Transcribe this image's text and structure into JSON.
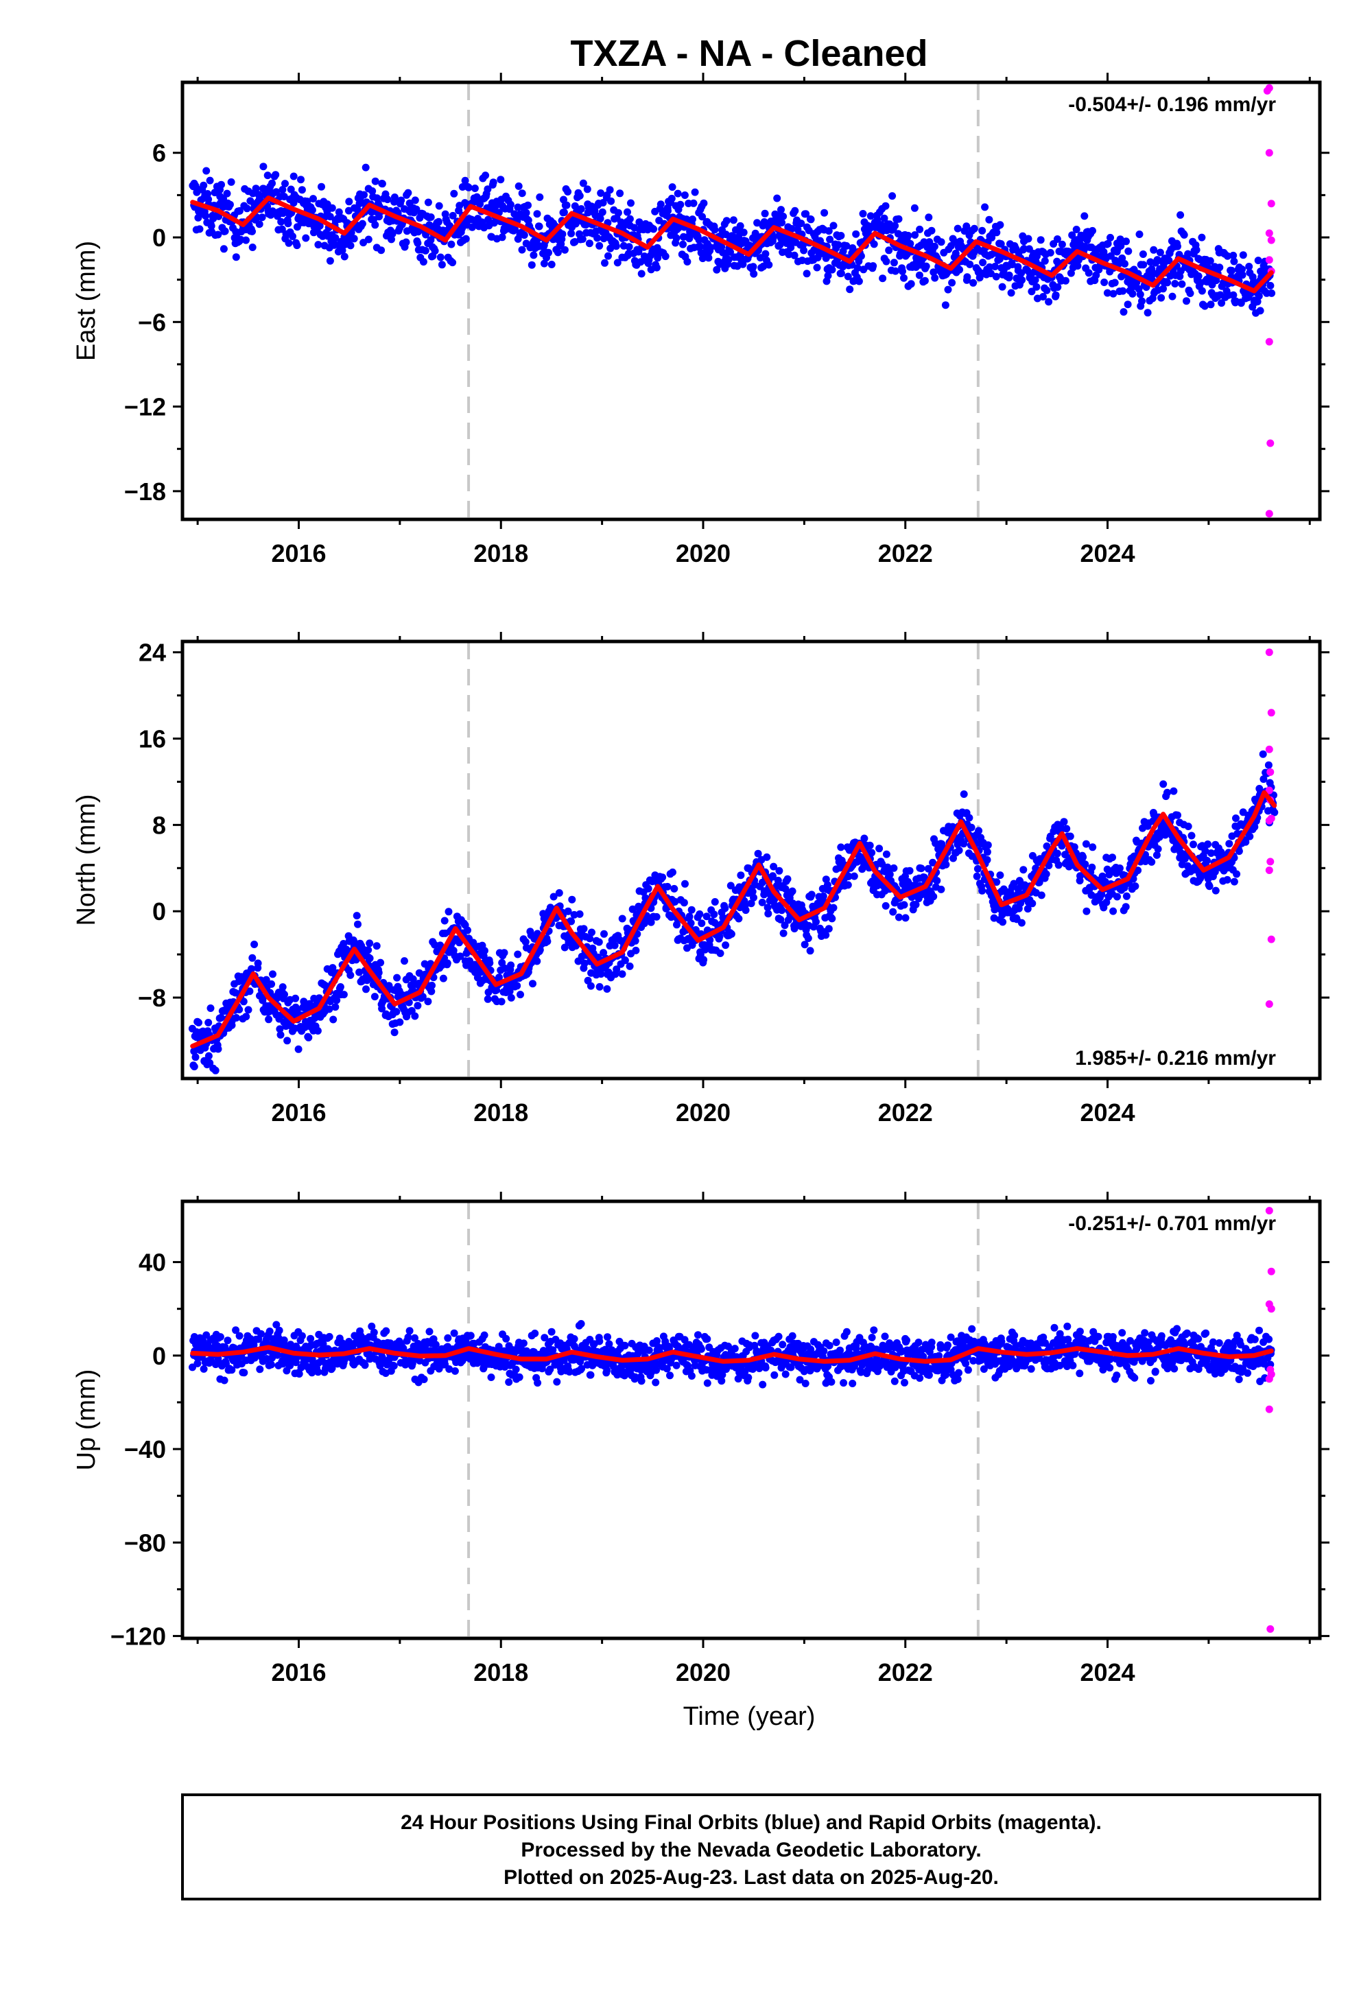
{
  "title": "TXZA  - NA - Cleaned",
  "xlabel": "Time (year)",
  "footer": {
    "line1": "24 Hour Positions Using Final Orbits (blue) and Rapid Orbits (magenta).",
    "line2": "Processed by the Nevada Geodetic Laboratory.",
    "line3": "Plotted on 2025-Aug-23. Last data on 2025-Aug-20."
  },
  "colors": {
    "final": "#0000ff",
    "rapid": "#ff00ff",
    "model": "#ff0000",
    "offset_line": "#c8c8c8",
    "frame": "#000000"
  },
  "chart_data": [
    {
      "type": "scatter",
      "name": "east",
      "ylabel": "East (mm)",
      "rate_label": "-0.504+/- 0.196 mm/yr",
      "rate_position": "top-right",
      "xlim": [
        2014.85,
        2026.1
      ],
      "ylim": [
        -20,
        11
      ],
      "x_ticks": [
        2016,
        2018,
        2020,
        2022,
        2024
      ],
      "y_ticks": [
        6,
        0,
        -6,
        -12,
        -18
      ],
      "y_tick_labels": [
        "6",
        "0",
        "−6",
        "−12",
        "−18"
      ],
      "offsets": [
        2017.68,
        2022.72
      ],
      "model": {
        "x": [
          2014.95,
          2015.2,
          2015.45,
          2015.7,
          2015.95,
          2016.2,
          2016.45,
          2016.7,
          2016.95,
          2017.2,
          2017.45,
          2017.7,
          2017.95,
          2018.2,
          2018.45,
          2018.7,
          2018.95,
          2019.2,
          2019.45,
          2019.7,
          2019.95,
          2020.2,
          2020.45,
          2020.7,
          2020.95,
          2021.2,
          2021.45,
          2021.7,
          2021.95,
          2022.2,
          2022.45,
          2022.7,
          2022.95,
          2023.2,
          2023.45,
          2023.7,
          2023.95,
          2024.2,
          2024.45,
          2024.7,
          2024.95,
          2025.2,
          2025.45,
          2025.62
        ],
        "y": [
          2.5,
          1.9,
          0.9,
          2.8,
          2.0,
          1.3,
          0.3,
          2.3,
          1.5,
          0.8,
          -0.2,
          2.2,
          1.5,
          0.8,
          -0.2,
          1.7,
          1.0,
          0.3,
          -0.7,
          1.3,
          0.6,
          -0.3,
          -1.2,
          0.7,
          0.0,
          -0.8,
          -1.7,
          0.3,
          -0.6,
          -1.3,
          -2.2,
          -0.3,
          -1.0,
          -1.8,
          -2.7,
          -1.0,
          -1.8,
          -2.5,
          -3.4,
          -1.5,
          -2.3,
          -3.0,
          -3.8,
          -2.5
        ]
      },
      "scatter_band": 1.6,
      "rapid": {
        "x": [
          2025.58,
          2025.6,
          2025.6,
          2025.62,
          2025.6,
          2025.62,
          2025.6,
          2025.62,
          2025.6,
          2025.61,
          2025.6
        ],
        "y": [
          10.4,
          10.6,
          6.0,
          2.4,
          0.3,
          -0.2,
          -1.6,
          -2.4,
          -7.4,
          -14.6,
          -19.6
        ]
      }
    },
    {
      "type": "scatter",
      "name": "north",
      "ylabel": "North (mm)",
      "rate_label": "1.985+/- 0.216 mm/yr",
      "rate_position": "bottom-right",
      "xlim": [
        2014.85,
        2026.1
      ],
      "ylim": [
        -15.5,
        25
      ],
      "x_ticks": [
        2016,
        2018,
        2020,
        2022,
        2024
      ],
      "y_ticks": [
        24,
        16,
        8,
        0,
        -8
      ],
      "y_tick_labels": [
        "24",
        "16",
        "8",
        "0",
        "−8"
      ],
      "offsets": [
        2017.68,
        2022.72
      ],
      "model": {
        "x": [
          2014.95,
          2015.2,
          2015.45,
          2015.55,
          2015.7,
          2015.95,
          2016.2,
          2016.45,
          2016.55,
          2016.7,
          2016.95,
          2017.2,
          2017.45,
          2017.55,
          2017.7,
          2017.95,
          2018.2,
          2018.45,
          2018.55,
          2018.7,
          2018.95,
          2019.2,
          2019.45,
          2019.55,
          2019.7,
          2019.95,
          2020.2,
          2020.45,
          2020.55,
          2020.7,
          2020.95,
          2021.2,
          2021.45,
          2021.55,
          2021.7,
          2021.95,
          2022.2,
          2022.45,
          2022.55,
          2022.7,
          2022.95,
          2023.2,
          2023.45,
          2023.55,
          2023.7,
          2023.95,
          2024.2,
          2024.45,
          2024.55,
          2024.7,
          2024.95,
          2025.2,
          2025.45,
          2025.55,
          2025.65
        ],
        "y": [
          -12.5,
          -11.5,
          -7.5,
          -5.8,
          -8.0,
          -10.2,
          -9.0,
          -5.0,
          -3.5,
          -5.5,
          -8.6,
          -7.5,
          -3.3,
          -1.6,
          -3.5,
          -6.8,
          -5.8,
          -1.5,
          0.3,
          -2.0,
          -4.9,
          -3.8,
          0.6,
          2.3,
          0.2,
          -2.7,
          -1.5,
          2.6,
          4.3,
          1.8,
          -0.8,
          0.3,
          4.6,
          6.3,
          3.7,
          1.3,
          2.3,
          6.5,
          8.3,
          5.6,
          0.6,
          1.5,
          5.8,
          7.2,
          4.3,
          2.0,
          3.0,
          7.6,
          9.0,
          6.8,
          3.8,
          5.0,
          8.8,
          11.0,
          9.8
        ]
      },
      "scatter_band": 1.8,
      "rapid": {
        "x": [
          2025.6,
          2025.62,
          2025.6,
          2025.61,
          2025.6,
          2025.62,
          2025.6,
          2025.61,
          2025.6,
          2025.62,
          2025.6,
          2025.61
        ],
        "y": [
          24.0,
          18.4,
          15.0,
          12.9,
          11.2,
          8.6,
          8.4,
          4.6,
          3.8,
          -2.6,
          -8.6,
          10.3
        ]
      }
    },
    {
      "type": "scatter",
      "name": "up",
      "ylabel": "Up (mm)",
      "rate_label": "-0.251+/- 0.701 mm/yr",
      "rate_position": "top-right",
      "xlim": [
        2014.85,
        2026.1
      ],
      "ylim": [
        -121,
        66
      ],
      "x_ticks": [
        2016,
        2018,
        2020,
        2022,
        2024
      ],
      "y_ticks": [
        40,
        0,
        -40,
        -80,
        -120
      ],
      "y_tick_labels": [
        "40",
        "0",
        "−40",
        "−80",
        "−120"
      ],
      "offsets": [
        2017.68,
        2022.72
      ],
      "model": {
        "x": [
          2014.95,
          2015.2,
          2015.45,
          2015.7,
          2015.95,
          2016.2,
          2016.45,
          2016.7,
          2016.95,
          2017.2,
          2017.45,
          2017.68,
          2017.95,
          2018.2,
          2018.45,
          2018.7,
          2018.95,
          2019.2,
          2019.45,
          2019.7,
          2019.95,
          2020.2,
          2020.45,
          2020.7,
          2020.95,
          2021.2,
          2021.45,
          2021.7,
          2021.95,
          2022.2,
          2022.45,
          2022.72,
          2022.95,
          2023.2,
          2023.45,
          2023.7,
          2023.95,
          2024.2,
          2024.45,
          2024.7,
          2024.95,
          2025.2,
          2025.45,
          2025.62
        ],
        "y": [
          1.0,
          0.5,
          1.5,
          3.5,
          1.0,
          0.2,
          0.8,
          3.0,
          1.0,
          -0.2,
          0.0,
          3.0,
          0.5,
          -1.5,
          -1.5,
          1.5,
          -0.5,
          -2.0,
          -1.5,
          1.5,
          -0.5,
          -2.5,
          -2.0,
          0.5,
          -1.5,
          -2.5,
          -2.0,
          0.8,
          -1.5,
          -2.5,
          -1.8,
          3.0,
          1.5,
          0.5,
          1.2,
          3.0,
          1.5,
          0.0,
          0.5,
          3.0,
          1.0,
          -0.5,
          0.0,
          2.0
        ]
      },
      "scatter_band": 6.5,
      "rapid": {
        "x": [
          2025.6,
          2025.62,
          2025.6,
          2025.62,
          2025.61,
          2025.6,
          2025.62,
          2025.6,
          2025.61
        ],
        "y": [
          62.0,
          36.0,
          22.0,
          20.0,
          -6.0,
          -10.0,
          -8.0,
          -23.0,
          -117.0
        ]
      }
    }
  ]
}
